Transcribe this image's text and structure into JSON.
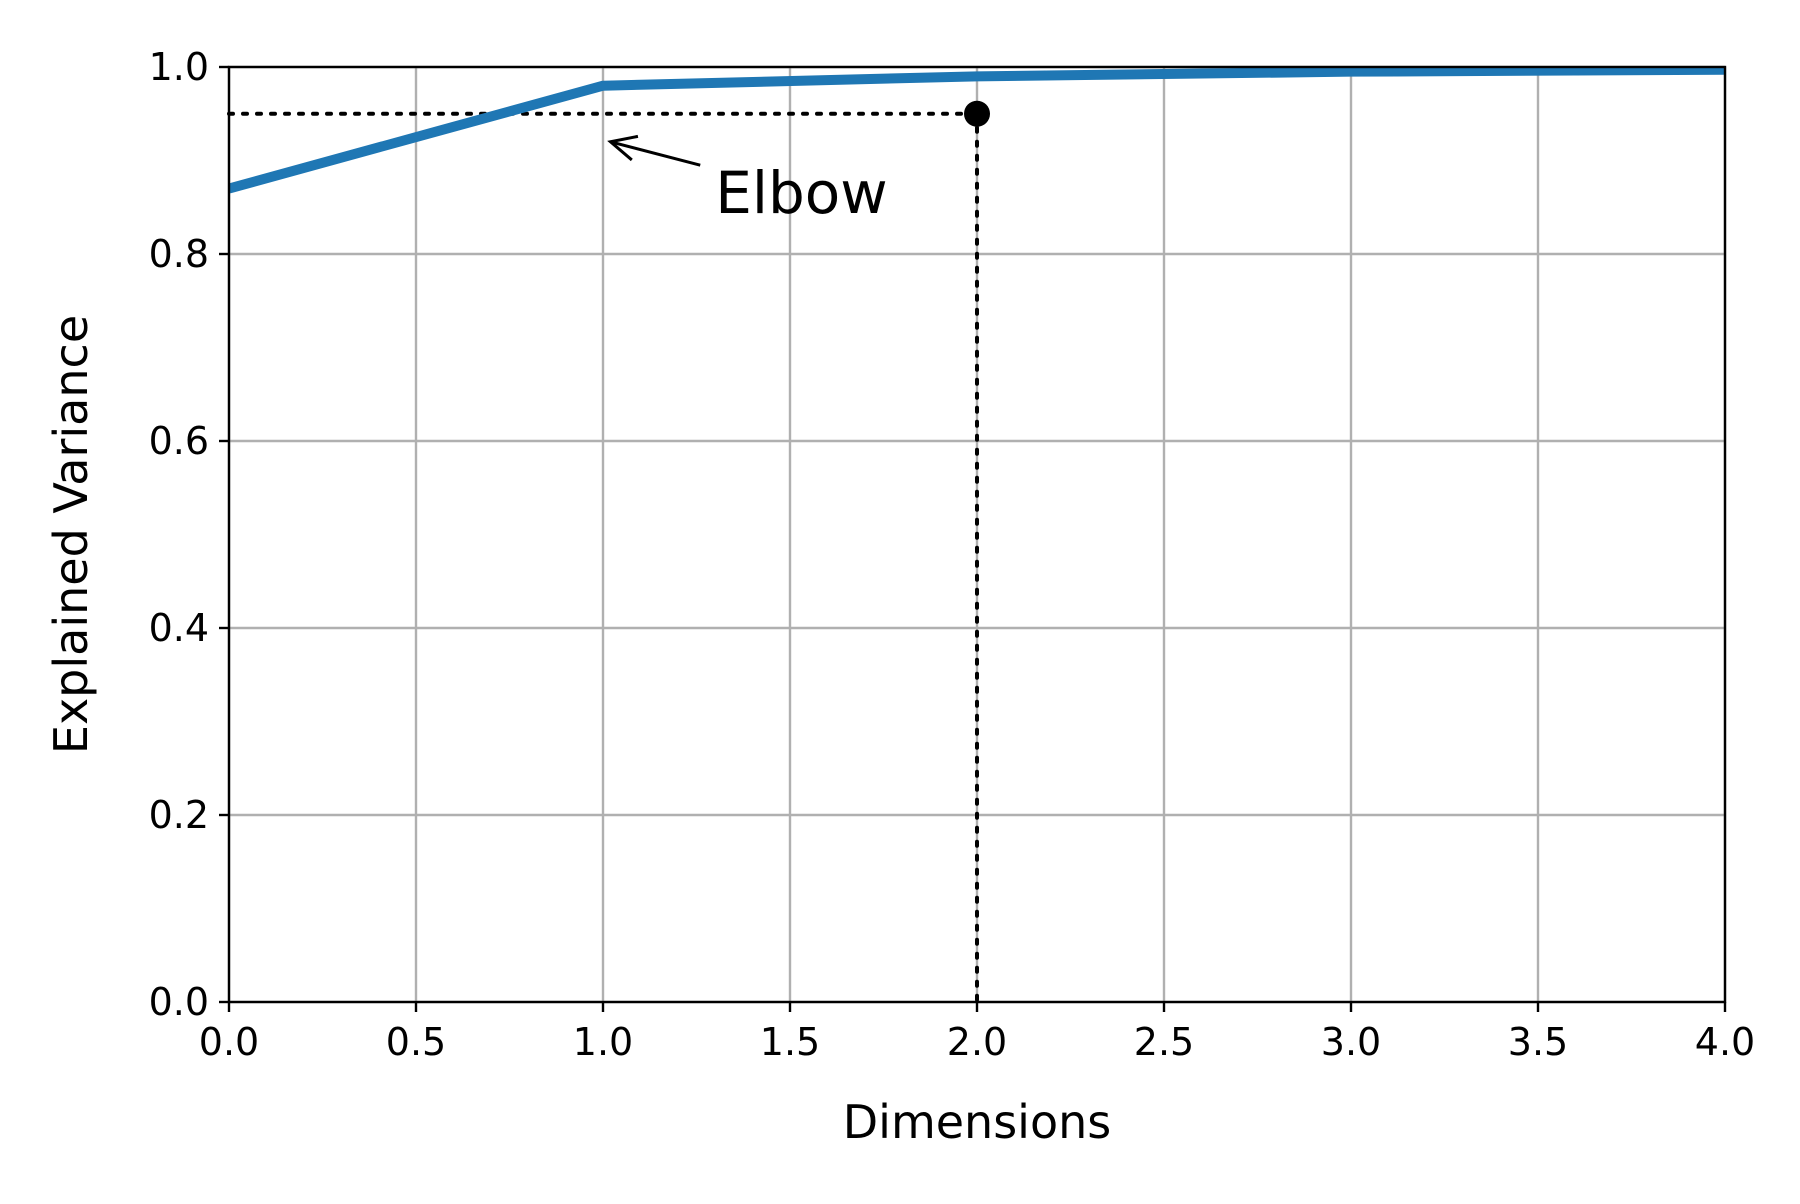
{
  "chart_data": {
    "type": "line",
    "title": "",
    "xlabel": "Dimensions",
    "ylabel": "Explained Variance",
    "xlim": [
      0,
      4
    ],
    "ylim": [
      0,
      1
    ],
    "grid": true,
    "x_ticks": [
      0,
      0.5,
      1,
      1.5,
      2,
      2.5,
      3,
      3.5,
      4
    ],
    "x_tick_labels": [
      "0.0",
      "0.5",
      "1.0",
      "1.5",
      "2.0",
      "2.5",
      "3.0",
      "3.5",
      "4.0"
    ],
    "y_ticks": [
      0,
      0.2,
      0.4,
      0.6,
      0.8,
      1.0
    ],
    "y_tick_labels": [
      "0.0",
      "0.2",
      "0.4",
      "0.6",
      "0.8",
      "1.0"
    ],
    "series": [
      {
        "color": "#1f77b4",
        "x": [
          0,
          1,
          2,
          3,
          4
        ],
        "y": [
          0.87,
          0.98,
          0.99,
          0.995,
          0.997
        ]
      }
    ],
    "threshold_point": {
      "x": 2,
      "y": 0.95
    },
    "annotation": {
      "text": "Elbow",
      "target": {
        "x": 1.02,
        "y": 0.92
      },
      "text_position": {
        "x": 1.3,
        "y": 0.865
      }
    }
  }
}
